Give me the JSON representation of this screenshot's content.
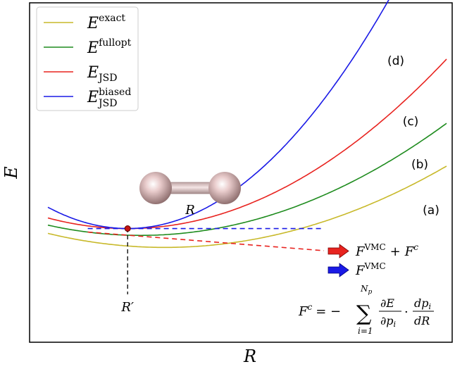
{
  "chart_data": {
    "type": "line",
    "xlabel": "R",
    "ylabel": "E",
    "grid": false,
    "legend_placement": "top-left",
    "xlim": [
      0,
      1
    ],
    "ylim": [
      0,
      1
    ],
    "series": [
      {
        "name": "E^exact",
        "base": "E",
        "sup": "exact",
        "sub": "",
        "color": "#c8b92a",
        "curve_label": "(a)",
        "x0": 0.33,
        "y0": 0.28,
        "a": 0.48,
        "b": 0.035
      },
      {
        "name": "E^fullopt",
        "base": "E",
        "sup": "fullopt",
        "sub": "",
        "color": "#1f8c1f",
        "curve_label": "(b)",
        "x0": 0.25,
        "y0": 0.315,
        "a": 0.56,
        "b": 0.02
      },
      {
        "name": "E_JSD",
        "base": "E",
        "sup": "",
        "sub": "JSD",
        "color": "#e8231f",
        "curve_label": "(c)",
        "x0": 0.2,
        "y0": 0.335,
        "a": 0.78,
        "b": 0.0
      },
      {
        "name": "E_JSD^biased",
        "base": "E",
        "sup": "biased",
        "sub": "JSD",
        "color": "#1a1ae6",
        "curve_label": "(d)",
        "x0": 0.2,
        "y0": 0.335,
        "a": 1.57,
        "b": 0.0
      }
    ],
    "annotations": {
      "min_point": {
        "x": 0.2,
        "y": 0.335,
        "label": "R′"
      },
      "molecule_label": "R",
      "force_blue": {
        "base": "F",
        "sup": "VMC",
        "color": "#1a1ae6"
      },
      "force_red": {
        "base": "F",
        "sup": "VMC",
        "plus": "+",
        "base2": "F",
        "sup2": "c",
        "color": "#e8231f"
      },
      "formula": {
        "lhs": "F",
        "lhs_sup": "c",
        "eq": "= −",
        "sum_top": "N",
        "sum_top_sub": "p",
        "sum_bottom": "i=1",
        "frac1_num": "∂E",
        "frac1_den": "∂p",
        "frac1_den_sub": "i",
        "dot": "·",
        "frac2_num": "dp",
        "frac2_num_sub": "i",
        "frac2_den": "dR"
      }
    }
  }
}
